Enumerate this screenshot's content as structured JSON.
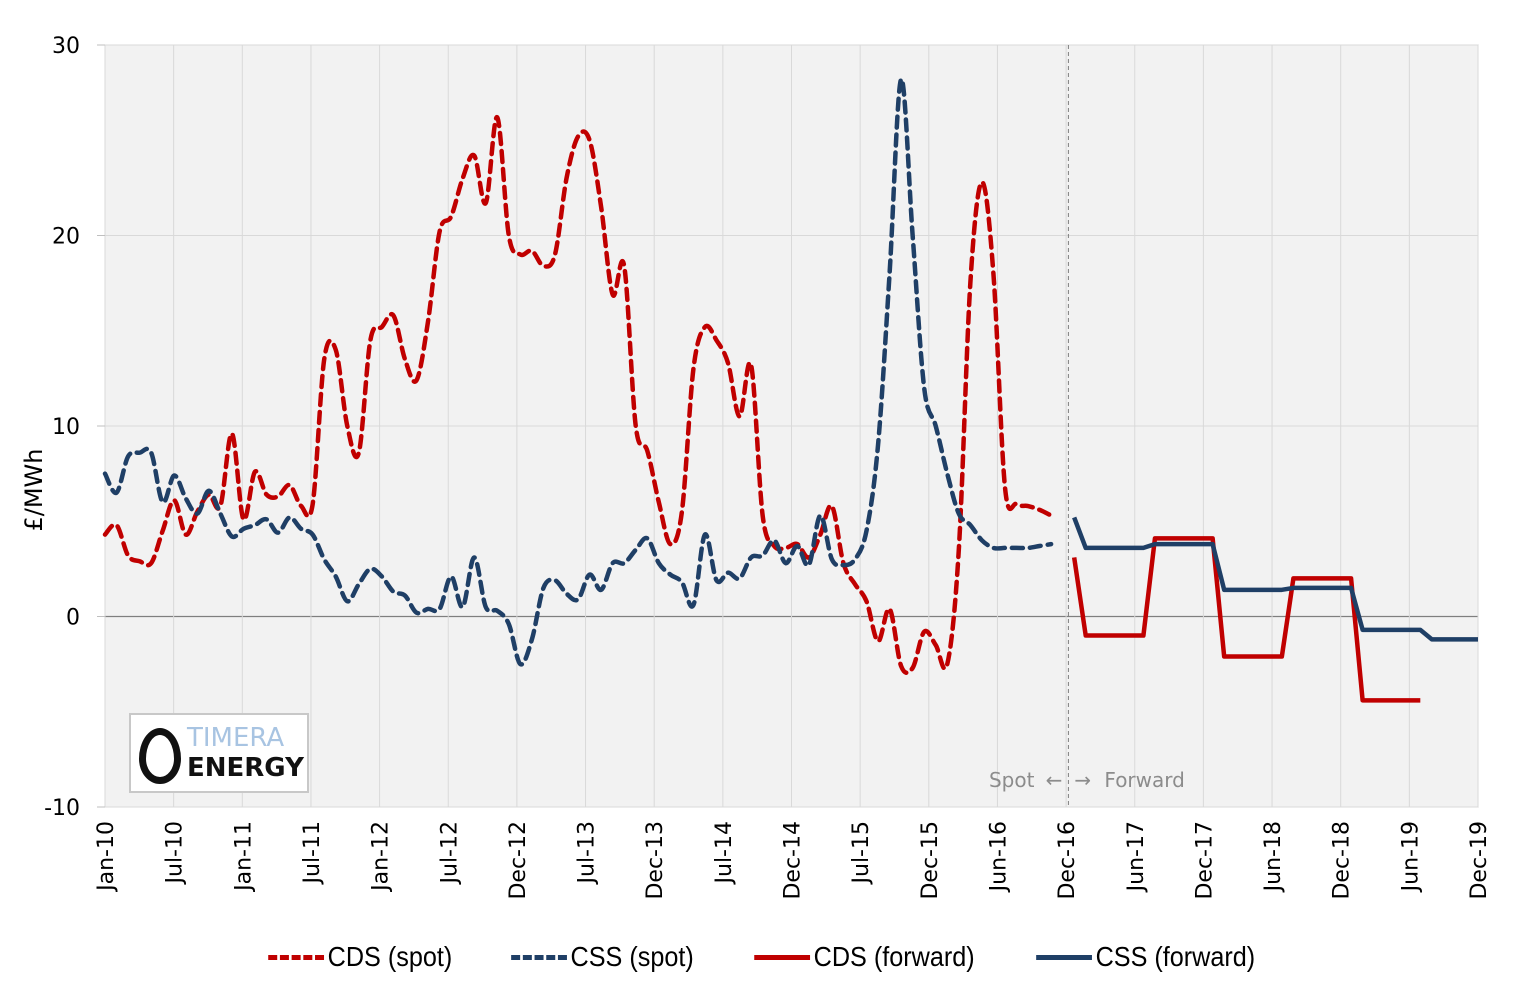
{
  "chart_data": {
    "type": "line",
    "title": "",
    "xlabel": "",
    "ylabel": "£/MWh",
    "ylim": [
      -10,
      30
    ],
    "yticks": [
      -10,
      0,
      10,
      20,
      30
    ],
    "x_index_range": [
      0,
      119
    ],
    "xtick_labels": [
      "Jan-10",
      "Jul-10",
      "Jan-11",
      "Jul-11",
      "Jan-12",
      "Jul-12",
      "Dec-12",
      "Jul-13",
      "Dec-13",
      "Jul-14",
      "Dec-14",
      "Jul-15",
      "Dec-15",
      "Jun-16",
      "Dec-16",
      "Jun-17",
      "Dec-17",
      "Jun-18",
      "Dec-18",
      "Jun-19",
      "Dec-19"
    ],
    "grid": true,
    "legend_position": "bottom",
    "annotations": {
      "spot_label": "Spot",
      "forward_label": "Forward",
      "left_arrow": "←",
      "right_arrow": "→",
      "divider_month_index": 83.5
    },
    "series": [
      {
        "name": "CDS (spot)",
        "style": "dashed",
        "color": "#c00000",
        "x": [
          0,
          1,
          2,
          3,
          4,
          5,
          6,
          7,
          8,
          9,
          10,
          11,
          12,
          13,
          14,
          15,
          16,
          17,
          18,
          19,
          20,
          21,
          22,
          23,
          24,
          25,
          26,
          27,
          28,
          29,
          30,
          31,
          32,
          33,
          34,
          35,
          36,
          37,
          38,
          39,
          40,
          41,
          42,
          43,
          44,
          45,
          46,
          47,
          48,
          49,
          50,
          51,
          52,
          53,
          54,
          55,
          56,
          57,
          58,
          59,
          60,
          61,
          62,
          63,
          64,
          65,
          66,
          67,
          68,
          69,
          70,
          71,
          72,
          73,
          74,
          75,
          76,
          77,
          78,
          79,
          80,
          81,
          82
        ],
        "values": [
          4.3,
          4.8,
          3.2,
          2.9,
          2.8,
          4.5,
          6.1,
          4.3,
          5.5,
          6.4,
          5.8,
          9.6,
          5.1,
          7.6,
          6.4,
          6.3,
          6.9,
          5.8,
          5.9,
          13.5,
          14.0,
          10.0,
          8.6,
          14.5,
          15.2,
          15.8,
          13.5,
          12.4,
          15.5,
          20.2,
          21.0,
          23.0,
          24.2,
          21.7,
          26.2,
          20.0,
          19.0,
          19.2,
          18.4,
          19.0,
          23.0,
          25.2,
          25.0,
          21.5,
          16.9,
          18.4,
          10.0,
          8.7,
          6.0,
          3.8,
          5.5,
          13.0,
          15.2,
          14.5,
          13.3,
          10.5,
          13.2,
          5.3,
          3.7,
          3.6,
          3.8,
          3.1,
          4.3,
          5.8,
          2.8,
          1.7,
          0.8,
          -1.3,
          0.4,
          -2.6,
          -2.7,
          -0.8,
          -1.5,
          -2.5,
          3.5,
          17.5,
          22.8,
          18.0,
          6.8,
          5.9,
          5.8,
          5.6,
          5.3
        ]
      },
      {
        "name": "CSS (spot)",
        "style": "dashed",
        "color": "#1f3f66",
        "x": [
          0,
          1,
          2,
          3,
          4,
          5,
          6,
          7,
          8,
          9,
          10,
          11,
          12,
          13,
          14,
          15,
          16,
          17,
          18,
          19,
          20,
          21,
          22,
          23,
          24,
          25,
          26,
          27,
          28,
          29,
          30,
          31,
          32,
          33,
          34,
          35,
          36,
          37,
          38,
          39,
          40,
          41,
          42,
          43,
          44,
          45,
          46,
          47,
          48,
          49,
          50,
          51,
          52,
          53,
          54,
          55,
          56,
          57,
          58,
          59,
          60,
          61,
          62,
          63,
          64,
          65,
          66,
          67,
          68,
          69,
          70,
          71,
          72,
          73,
          74,
          75,
          76,
          77,
          78,
          79,
          80,
          81,
          82
        ],
        "values": [
          7.5,
          6.5,
          8.4,
          8.6,
          8.6,
          6.0,
          7.4,
          6.2,
          5.4,
          6.6,
          5.4,
          4.2,
          4.6,
          4.8,
          5.1,
          4.4,
          5.2,
          4.6,
          4.3,
          3.0,
          2.1,
          0.8,
          1.7,
          2.5,
          2.1,
          1.3,
          1.1,
          0.2,
          0.4,
          0.4,
          2.1,
          0.5,
          3.1,
          0.5,
          0.3,
          -0.4,
          -2.5,
          -1.2,
          1.5,
          1.9,
          1.2,
          0.9,
          2.2,
          1.4,
          2.8,
          2.8,
          3.5,
          4.1,
          2.8,
          2.2,
          1.8,
          0.6,
          4.3,
          1.9,
          2.3,
          2.0,
          3.1,
          3.2,
          4.0,
          2.8,
          3.7,
          2.7,
          5.3,
          3.0,
          2.7,
          3.0,
          4.5,
          9.0,
          18.0,
          28.2,
          20.0,
          12.0,
          10.0,
          7.5,
          5.4,
          4.8,
          4.0,
          3.6,
          3.6,
          3.6,
          3.6,
          3.7,
          3.8
        ]
      },
      {
        "name": "CDS (forward)",
        "style": "solid",
        "color": "#c00000",
        "x": [
          84,
          85,
          86,
          87,
          88,
          89,
          90,
          91,
          92,
          93,
          94,
          95,
          96,
          97,
          98,
          99,
          100,
          101,
          102,
          103,
          104,
          105,
          106,
          107,
          108,
          109,
          110,
          111,
          112,
          113,
          114
        ],
        "values": [
          3.1,
          -1.0,
          -1.0,
          -1.0,
          -1.0,
          -1.0,
          -1.0,
          4.1,
          4.1,
          4.1,
          4.1,
          4.1,
          4.1,
          -2.1,
          -2.1,
          -2.1,
          -2.1,
          -2.1,
          -2.1,
          2.0,
          2.0,
          2.0,
          2.0,
          2.0,
          2.0,
          -4.4,
          -4.4,
          -4.4,
          -4.4,
          -4.4,
          -4.4
        ]
      },
      {
        "name": "CSS (forward)",
        "style": "solid",
        "color": "#1f3f66",
        "x": [
          84,
          85,
          86,
          87,
          88,
          89,
          90,
          91,
          92,
          93,
          94,
          95,
          96,
          97,
          98,
          99,
          100,
          101,
          102,
          103,
          104,
          105,
          106,
          107,
          108,
          109,
          110,
          111,
          112,
          113,
          114,
          115,
          116,
          117,
          118,
          119
        ],
        "values": [
          5.2,
          3.6,
          3.6,
          3.6,
          3.6,
          3.6,
          3.6,
          3.8,
          3.8,
          3.8,
          3.8,
          3.8,
          3.8,
          1.4,
          1.4,
          1.4,
          1.4,
          1.4,
          1.4,
          1.5,
          1.5,
          1.5,
          1.5,
          1.5,
          1.5,
          -0.7,
          -0.7,
          -0.7,
          -0.7,
          -0.7,
          -0.7,
          -1.2,
          -1.2,
          -1.2,
          -1.2,
          -1.2
        ]
      }
    ]
  },
  "logo": {
    "line1": "TIMERA",
    "line2": "ENERGY"
  },
  "legend": [
    {
      "label": "CDS (spot)",
      "color": "#c00000",
      "style": "dashed"
    },
    {
      "label": "CSS (spot)",
      "color": "#1f3f66",
      "style": "dashed"
    },
    {
      "label": "CDS (forward)",
      "color": "#c00000",
      "style": "solid"
    },
    {
      "label": "CSS (forward)",
      "color": "#1f3f66",
      "style": "solid"
    }
  ]
}
